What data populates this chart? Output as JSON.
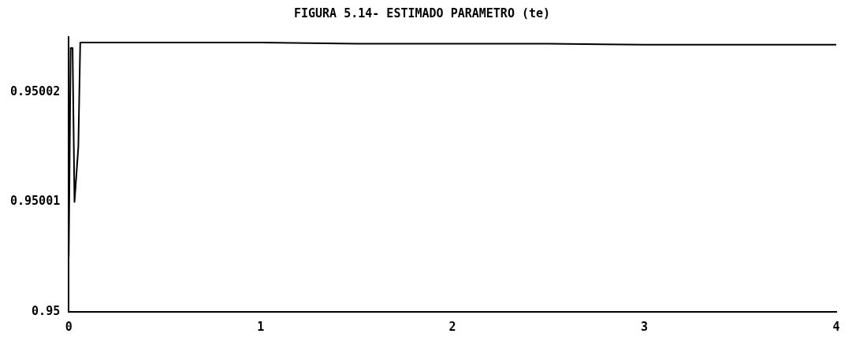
{
  "chart_data": {
    "type": "line",
    "title": "FIGURA 5.14- ESTIMADO PARAMETRO (te)",
    "x": [
      0,
      0.01,
      0.02,
      0.03,
      0.05,
      0.06,
      0.5,
      1,
      1.5,
      2,
      2.5,
      3,
      3.5,
      4
    ],
    "series": [
      {
        "color": "#000000",
        "values": [
          0.950005,
          0.950024,
          0.950024,
          0.95001,
          0.950015,
          0.9500245,
          0.9500245,
          0.9500245,
          0.9500244,
          0.9500244,
          0.9500244,
          0.9500243,
          0.9500243,
          0.9500243
        ]
      }
    ],
    "xlim": [
      0,
      4
    ],
    "xticks": [
      0,
      1,
      2,
      3,
      4
    ],
    "ylim": [
      0.95,
      0.950025
    ],
    "yticks": [
      0.95,
      0.95001,
      0.95002
    ],
    "grid": false,
    "legend": false,
    "marker": "none",
    "line_style": "solid"
  }
}
